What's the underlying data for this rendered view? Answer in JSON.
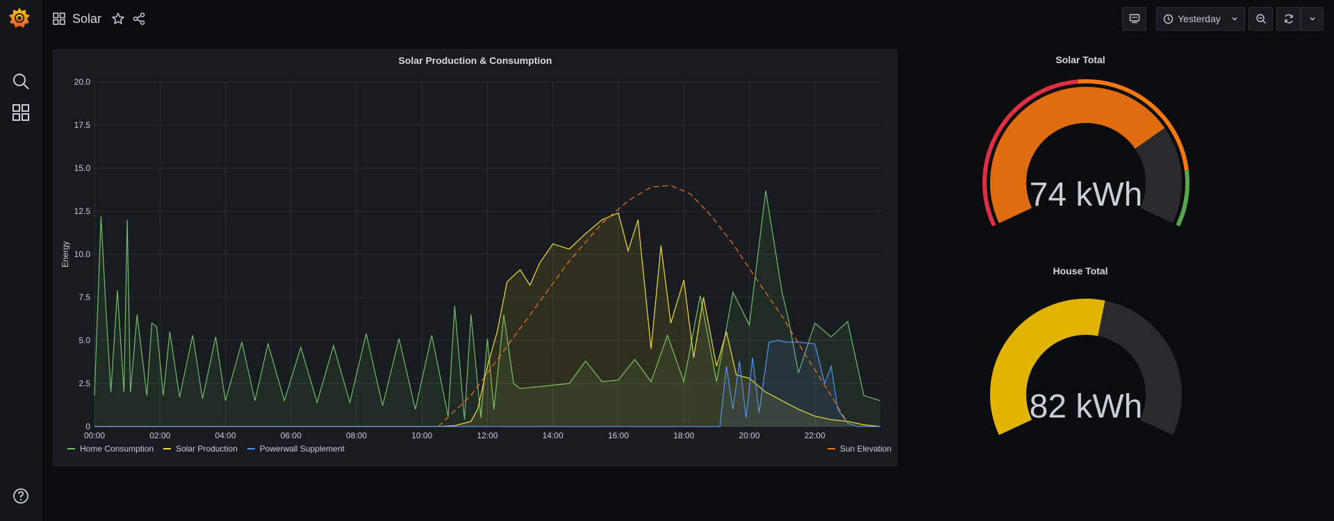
{
  "dashboard": {
    "title": "Solar"
  },
  "toolbar": {
    "time_range_label": "Yesterday"
  },
  "colors": {
    "home": "#73bf69",
    "solar": "#fade2a",
    "powerwall": "#5794f2",
    "sun": "#ff780a",
    "gauge_red": "#e02f44",
    "gauge_orange": "#ff780a",
    "gauge_green": "#56a64b",
    "gauge_yellow": "#e0b400",
    "gauge_track": "#2a2a2c"
  },
  "chart_panel": {
    "title": "Solar Production & Consumption",
    "ylabel": "Energy",
    "legend_left": [
      "Home Consumption",
      "Solar Production",
      "Powerwall Supplement"
    ],
    "legend_right": [
      "Sun Elevation"
    ]
  },
  "chart_data": {
    "type": "line",
    "title": "Solar Production & Consumption",
    "xlabel": "",
    "ylabel": "Energy",
    "ylim": [
      0,
      20
    ],
    "xlim_hours": [
      0,
      24
    ],
    "y_ticks": [
      "0",
      "2.5",
      "5.0",
      "7.5",
      "10.0",
      "12.5",
      "15.0",
      "17.5",
      "20.0"
    ],
    "x_ticks": [
      "00:00",
      "02:00",
      "04:00",
      "06:00",
      "08:00",
      "10:00",
      "12:00",
      "14:00",
      "16:00",
      "18:00",
      "20:00",
      "22:00"
    ],
    "grid": true,
    "legend": "bottom",
    "series": [
      {
        "name": "Home Consumption",
        "x": [
          0,
          0.2,
          0.35,
          0.5,
          0.7,
          0.9,
          1.0,
          1.1,
          1.3,
          1.6,
          1.75,
          1.9,
          2.1,
          2.3,
          2.6,
          3.0,
          3.3,
          3.7,
          4.0,
          4.5,
          4.9,
          5.3,
          5.8,
          6.3,
          6.8,
          7.3,
          7.8,
          8.3,
          8.8,
          9.3,
          9.8,
          10.3,
          10.8,
          11.0,
          11.3,
          11.5,
          11.8,
          12.0,
          12.2,
          12.5,
          12.8,
          13.0,
          13.5,
          14.0,
          14.5,
          15.0,
          15.5,
          16.0,
          16.5,
          17.0,
          17.5,
          18.0,
          18.5,
          19.0,
          19.5,
          20.0,
          20.5,
          21.0,
          21.2,
          21.5,
          22.0,
          22.5,
          23.0,
          23.5,
          24.0
        ],
        "values": [
          1.8,
          12.2,
          6.8,
          2.0,
          7.9,
          2.0,
          12.0,
          2.0,
          6.5,
          1.8,
          6.0,
          5.8,
          1.8,
          5.5,
          1.7,
          5.3,
          1.6,
          5.2,
          1.5,
          4.9,
          1.5,
          4.8,
          1.5,
          4.6,
          1.4,
          4.7,
          1.4,
          5.4,
          1.2,
          5.1,
          1.0,
          5.3,
          0.6,
          7.0,
          0.4,
          6.5,
          0.5,
          5.1,
          1.0,
          6.5,
          2.5,
          2.2,
          2.3,
          2.4,
          2.5,
          3.8,
          2.6,
          2.7,
          3.9,
          2.6,
          5.3,
          2.6,
          7.6,
          2.6,
          7.8,
          5.9,
          13.7,
          7.8,
          6.2,
          3.1,
          6.0,
          5.2,
          6.1,
          1.8,
          1.5
        ]
      },
      {
        "name": "Solar Production",
        "x": [
          0,
          10.5,
          11.0,
          11.5,
          11.7,
          12.0,
          12.3,
          12.6,
          13.0,
          13.3,
          13.6,
          14.0,
          14.5,
          15.0,
          15.5,
          16.0,
          16.3,
          16.6,
          17.0,
          17.3,
          17.6,
          18.0,
          18.3,
          18.6,
          19.0,
          19.3,
          19.6,
          20.0,
          20.5,
          21.0,
          21.5,
          22.0,
          22.5,
          23.0,
          23.5,
          24.0
        ],
        "values": [
          0,
          0,
          0.05,
          0.3,
          1.0,
          3.5,
          5.5,
          8.4,
          9.1,
          8.2,
          9.5,
          10.6,
          10.3,
          11.2,
          12.0,
          12.4,
          10.2,
          12.0,
          4.5,
          10.5,
          6.0,
          8.5,
          4.0,
          7.5,
          3.5,
          5.5,
          3.0,
          2.8,
          2.0,
          1.5,
          1.0,
          0.6,
          0.4,
          0.3,
          0.1,
          0
        ]
      },
      {
        "name": "Powerwall Supplement",
        "x": [
          0,
          17.4,
          17.5,
          17.9,
          18.0,
          19.1,
          19.3,
          19.5,
          19.7,
          19.9,
          20.1,
          20.3,
          20.6,
          20.9,
          21.1,
          21.5,
          22.0,
          22.3,
          22.5,
          22.7,
          23.0,
          23.3,
          24.0
        ],
        "values": [
          0,
          0,
          0,
          0,
          0,
          0,
          3.5,
          1.0,
          3.8,
          0.5,
          4.0,
          0.8,
          4.9,
          5.0,
          4.9,
          4.9,
          4.8,
          2.5,
          3.5,
          1.0,
          0.2,
          0,
          0
        ]
      },
      {
        "name": "Sun Elevation",
        "x": [
          10.5,
          11.5,
          12.5,
          13.5,
          14.5,
          15.5,
          16.3,
          17.0,
          17.6,
          18.2,
          18.8,
          19.5,
          20.2,
          21.0,
          21.8,
          22.5,
          23.0
        ],
        "values": [
          0,
          1.8,
          4.4,
          7.0,
          9.6,
          11.8,
          13.1,
          13.9,
          14.0,
          13.5,
          12.3,
          10.6,
          8.6,
          6.4,
          3.9,
          1.8,
          0.2
        ]
      }
    ]
  },
  "gauges": [
    {
      "title": "Solar Total",
      "value": "74 kWh",
      "fraction": 0.74
    },
    {
      "title": "House Total",
      "value": "82 kWh",
      "fraction": 0.55
    }
  ]
}
